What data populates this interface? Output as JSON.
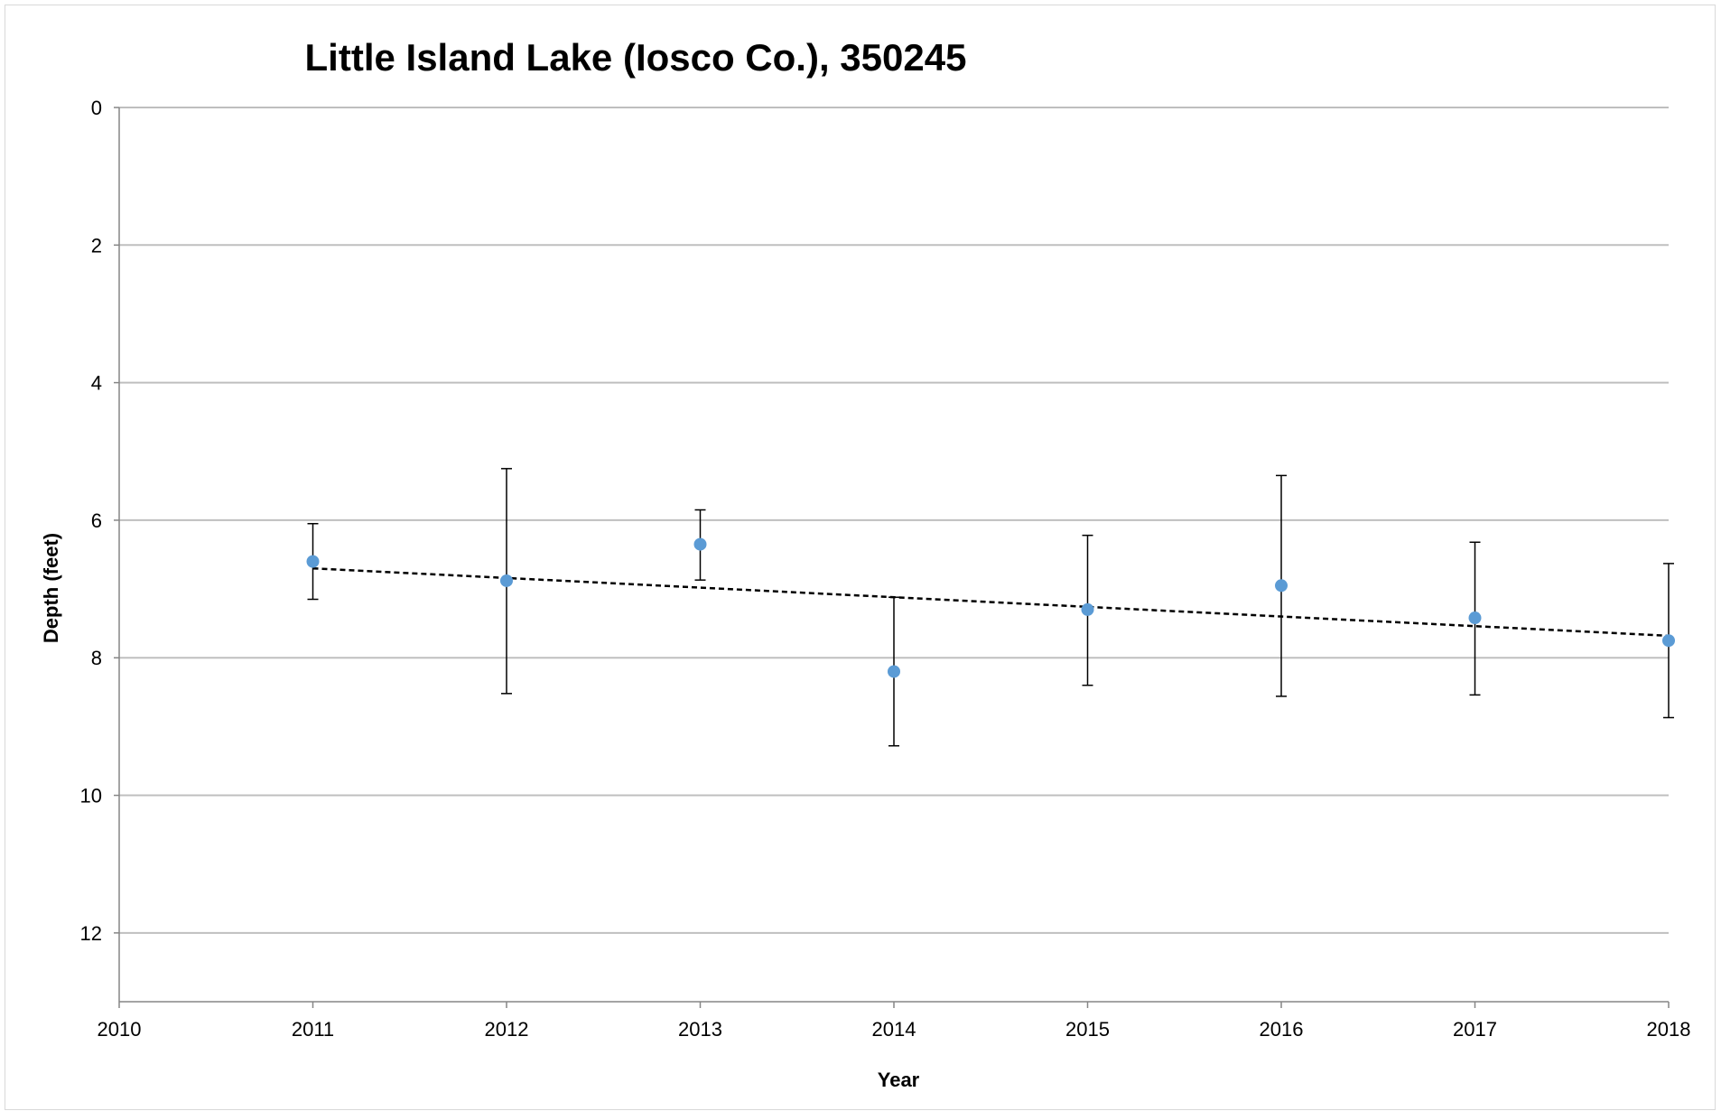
{
  "chart_data": {
    "type": "scatter",
    "title": "Little Island Lake (Iosco Co.), 350245",
    "xlabel": "Year",
    "ylabel": "Depth (feet)",
    "xlim": [
      2010,
      2018
    ],
    "ylim": [
      0,
      13
    ],
    "y_axis_inverted": true,
    "x_ticks": [
      2010,
      2011,
      2012,
      2013,
      2014,
      2015,
      2016,
      2017,
      2018
    ],
    "y_ticks": [
      0,
      2,
      4,
      6,
      8,
      10,
      12
    ],
    "grid": "horizontal",
    "legend": "none",
    "series": [
      {
        "color": "#5b9bd5",
        "points": [
          {
            "x": 2011,
            "y": 6.6,
            "err_low": 6.05,
            "err_high": 7.15
          },
          {
            "x": 2012,
            "y": 6.88,
            "err_low": 5.25,
            "err_high": 8.52
          },
          {
            "x": 2013,
            "y": 6.35,
            "err_low": 5.85,
            "err_high": 6.87
          },
          {
            "x": 2014,
            "y": 8.2,
            "err_low": 7.12,
            "err_high": 9.28
          },
          {
            "x": 2015,
            "y": 7.3,
            "err_low": 6.22,
            "err_high": 8.4
          },
          {
            "x": 2016,
            "y": 6.95,
            "err_low": 5.35,
            "err_high": 8.56
          },
          {
            "x": 2017,
            "y": 7.42,
            "err_low": 6.32,
            "err_high": 8.54
          },
          {
            "x": 2018,
            "y": 7.75,
            "err_low": 6.63,
            "err_high": 8.87
          }
        ]
      }
    ],
    "trendline": {
      "style": "dashed",
      "color": "#000000",
      "from": {
        "x": 2011,
        "y": 6.7
      },
      "to": {
        "x": 2018,
        "y": 7.68
      }
    }
  }
}
